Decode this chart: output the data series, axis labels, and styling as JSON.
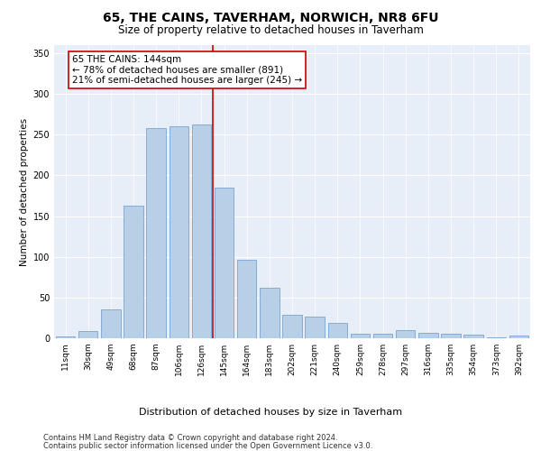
{
  "title": "65, THE CAINS, TAVERHAM, NORWICH, NR8 6FU",
  "subtitle": "Size of property relative to detached houses in Taverham",
  "xlabel": "Distribution of detached houses by size in Taverham",
  "ylabel": "Number of detached properties",
  "categories": [
    "11sqm",
    "30sqm",
    "49sqm",
    "68sqm",
    "87sqm",
    "106sqm",
    "126sqm",
    "145sqm",
    "164sqm",
    "183sqm",
    "202sqm",
    "221sqm",
    "240sqm",
    "259sqm",
    "278sqm",
    "297sqm",
    "316sqm",
    "335sqm",
    "354sqm",
    "373sqm",
    "392sqm"
  ],
  "values": [
    2,
    9,
    36,
    163,
    258,
    260,
    262,
    185,
    96,
    62,
    29,
    27,
    19,
    6,
    6,
    10,
    7,
    6,
    4,
    1,
    3
  ],
  "bar_color": "#b8cfe8",
  "bar_edge_color": "#6699cc",
  "vline_color": "#cc0000",
  "annotation_text": "65 THE CAINS: 144sqm\n← 78% of detached houses are smaller (891)\n21% of semi-detached houses are larger (245) →",
  "annotation_box_color": "#ffffff",
  "annotation_box_edge_color": "#cc0000",
  "annotation_fontsize": 7.5,
  "ylim": [
    0,
    360
  ],
  "yticks": [
    0,
    50,
    100,
    150,
    200,
    250,
    300,
    350
  ],
  "background_color": "#e8eef8",
  "footer_line1": "Contains HM Land Registry data © Crown copyright and database right 2024.",
  "footer_line2": "Contains public sector information licensed under the Open Government Licence v3.0.",
  "title_fontsize": 10,
  "subtitle_fontsize": 8.5,
  "xlabel_fontsize": 8,
  "ylabel_fontsize": 7.5,
  "tick_fontsize": 6.5,
  "ytick_fontsize": 7,
  "footer_fontsize": 6.0
}
